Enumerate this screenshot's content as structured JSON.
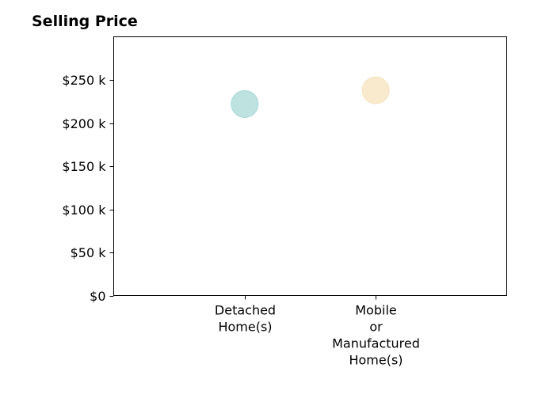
{
  "chart_data": {
    "type": "scatter",
    "title": "Selling Price",
    "xlabel": "",
    "ylabel": "",
    "categories": [
      [
        "Detached",
        "Home(s)"
      ],
      [
        "Mobile",
        "or",
        "Manufactured",
        "Home(s)"
      ]
    ],
    "values": [
      222000,
      238000
    ],
    "colors": [
      "#a8d8d6",
      "#f7e3be"
    ],
    "ylim": [
      0,
      300000
    ],
    "xlim": [
      -1,
      2
    ],
    "yticks": [
      0,
      50000,
      100000,
      150000,
      200000,
      250000
    ],
    "ytick_labels": [
      "$0",
      "$50 k",
      "$100 k",
      "$150 k",
      "$200 k",
      "$250 k"
    ],
    "grid": false,
    "legend": "none"
  }
}
